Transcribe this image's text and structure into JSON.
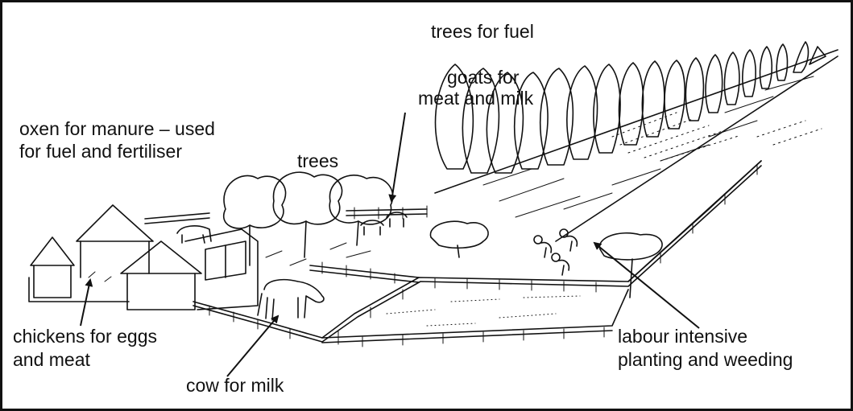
{
  "labels": [
    {
      "lines": [
        "trees for fuel"
      ]
    },
    {
      "lines": [
        "goats for",
        "meat and milk"
      ]
    },
    {
      "lines": [
        "oxen for manure – used",
        "for fuel and fertiliser"
      ]
    },
    {
      "lines": [
        "trees"
      ]
    },
    {
      "lines": [
        "chickens for eggs",
        "and meat"
      ]
    },
    {
      "lines": [
        "cow for milk"
      ]
    },
    {
      "lines": [
        "labour intensive",
        "planting and weeding"
      ]
    }
  ]
}
